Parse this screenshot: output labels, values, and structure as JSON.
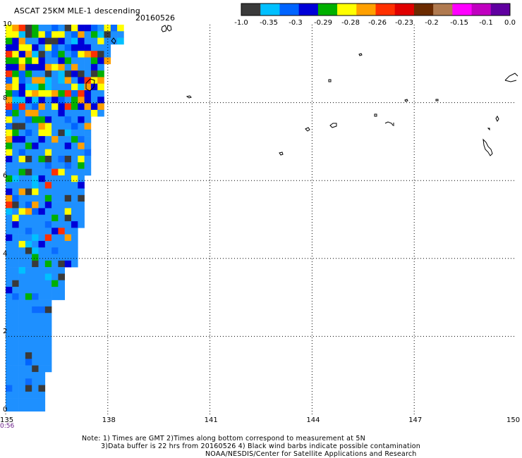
{
  "header": {
    "title": "ASCAT 25KM MLE-1 descending",
    "date": "20160526"
  },
  "colorbar": {
    "labels": [
      "-1.0",
      "-0.35",
      "-0.3",
      "-0.29",
      "-0.28",
      "-0.26",
      "-0.23",
      "-0.2",
      "-0.15",
      "-0.1",
      "0.0"
    ],
    "colors": [
      "#3a3a3a",
      "#00c0ff",
      "#0064ff",
      "#0000d8",
      "#00b000",
      "#ffff00",
      "#ffa000",
      "#ff3000",
      "#e00000",
      "#6b2a00",
      "#b07a50",
      "#ff00ff",
      "#c000c0",
      "#6000a0"
    ]
  },
  "axes": {
    "x_ticks": [
      "135",
      "138",
      "141",
      "144",
      "147",
      "150"
    ],
    "y_ticks": [
      "10",
      "8",
      "6",
      "4",
      "2",
      "0"
    ]
  },
  "pass_time": "0:56",
  "notes": {
    "line1": "Note: 1) Times are GMT 2)Times along bottom correspond to measurement at 5N",
    "line2": "3)Data buffer is 22 hrs from 20160526 4) Black wind barbs indicate possible contamination",
    "line3": "NOAA/NESDIS/Center for Satellite Applications and Research"
  }
}
